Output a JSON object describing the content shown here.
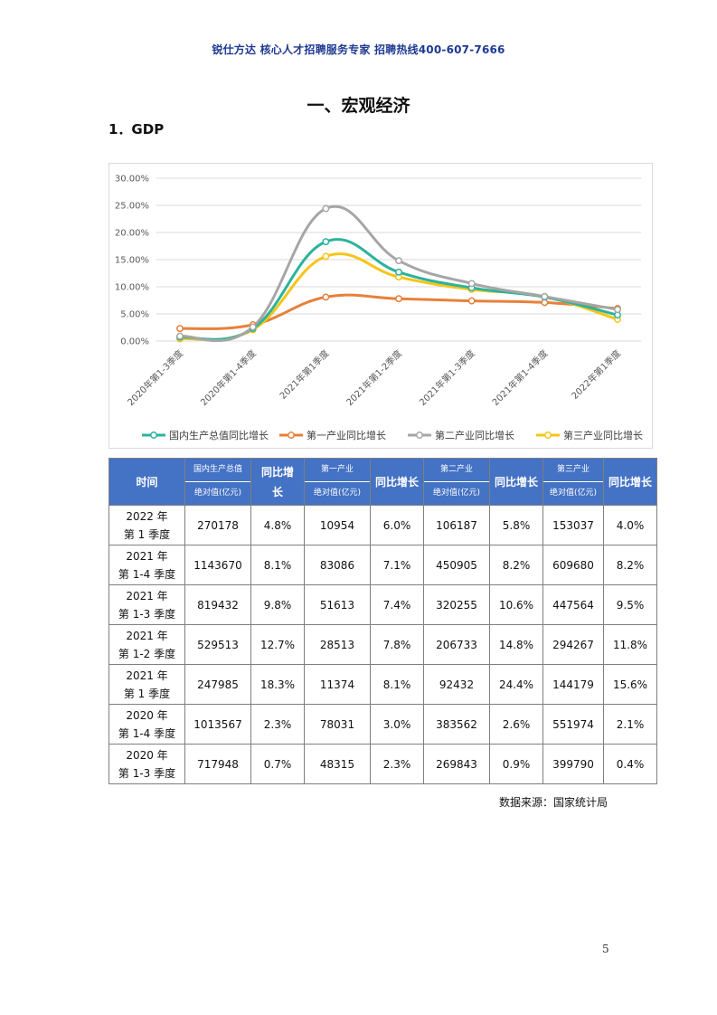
{
  "header": "锐仕方达  核心人才招聘服务专家  招聘热线400-607-7666",
  "section_title": "一、宏观经济",
  "sub_title": "1．GDP",
  "chart_data": {
    "type": "line",
    "categories": [
      "2020年第1-3季度",
      "2020年第1-4季度",
      "2021年第1季度",
      "2021年第1-2季度",
      "2021年第1-3季度",
      "2021年第1-4季度",
      "2022年第1季度"
    ],
    "y_ticks": [
      "30.00%",
      "25.00%",
      "20.00%",
      "15.00%",
      "10.00%",
      "5.00%",
      "0.00%"
    ],
    "ylim": [
      0,
      30
    ],
    "legend_position": "bottom",
    "series": [
      {
        "name": "国内生产总值同比增长",
        "color": "#2bb39b",
        "values": [
          0.7,
          2.3,
          18.3,
          12.7,
          9.8,
          8.1,
          4.8
        ]
      },
      {
        "name": "第一产业同比增长",
        "color": "#e8803a",
        "values": [
          2.3,
          3.0,
          8.1,
          7.8,
          7.4,
          7.1,
          6.0
        ]
      },
      {
        "name": "第二产业同比增长",
        "color": "#a6a6a6",
        "values": [
          0.9,
          2.6,
          24.4,
          14.8,
          10.6,
          8.2,
          5.8
        ]
      },
      {
        "name": "第三产业同比增长",
        "color": "#f5c518",
        "values": [
          0.4,
          2.1,
          15.6,
          11.8,
          9.5,
          8.2,
          4.0
        ]
      }
    ]
  },
  "table": {
    "header": {
      "time": "时间",
      "gdp_abs_top": "国内生产总值",
      "gdp_abs_bot": "绝对值(亿元)",
      "gdp_growth": "同比增长",
      "p1_top": "第一产业",
      "p1_bot": "绝对值(亿元)",
      "p1_growth": "同比增长",
      "p2_top": "第二产业",
      "p2_bot": "绝对值(亿元)",
      "p2_growth": "同比增长",
      "p3_top": "第三产业",
      "p3_bot": "绝对值(亿元)",
      "p3_growth": "同比增长"
    },
    "rows": [
      {
        "y": "2022 年",
        "q": "第 1 季度",
        "gdp": "270178",
        "gdp_g": "4.8%",
        "p1": "10954",
        "p1_g": "6.0%",
        "p2": "106187",
        "p2_g": "5.8%",
        "p3": "153037",
        "p3_g": "4.0%"
      },
      {
        "y": "2021 年",
        "q": "第 1-4 季度",
        "gdp": "1143670",
        "gdp_g": "8.1%",
        "p1": "83086",
        "p1_g": "7.1%",
        "p2": "450905",
        "p2_g": "8.2%",
        "p3": "609680",
        "p3_g": "8.2%"
      },
      {
        "y": "2021 年",
        "q": "第 1-3 季度",
        "gdp": "819432",
        "gdp_g": "9.8%",
        "p1": "51613",
        "p1_g": "7.4%",
        "p2": "320255",
        "p2_g": "10.6%",
        "p3": "447564",
        "p3_g": "9.5%"
      },
      {
        "y": "2021 年",
        "q": "第 1-2 季度",
        "gdp": "529513",
        "gdp_g": "12.7%",
        "p1": "28513",
        "p1_g": "7.8%",
        "p2": "206733",
        "p2_g": "14.8%",
        "p3": "294267",
        "p3_g": "11.8%"
      },
      {
        "y": "2021 年",
        "q": "第 1 季度",
        "gdp": "247985",
        "gdp_g": "18.3%",
        "p1": "11374",
        "p1_g": "8.1%",
        "p2": "92432",
        "p2_g": "24.4%",
        "p3": "144179",
        "p3_g": "15.6%"
      },
      {
        "y": "2020 年",
        "q": "第 1-4 季度",
        "gdp": "1013567",
        "gdp_g": "2.3%",
        "p1": "78031",
        "p1_g": "3.0%",
        "p2": "383562",
        "p2_g": "2.6%",
        "p3": "551974",
        "p3_g": "2.1%"
      },
      {
        "y": "2020 年",
        "q": "第 1-3 季度",
        "gdp": "717948",
        "gdp_g": "0.7%",
        "p1": "48315",
        "p1_g": "2.3%",
        "p2": "269843",
        "p2_g": "0.9%",
        "p3": "399790",
        "p3_g": "0.4%"
      }
    ]
  },
  "source": "数据来源：国家统计局",
  "page_number": "5"
}
